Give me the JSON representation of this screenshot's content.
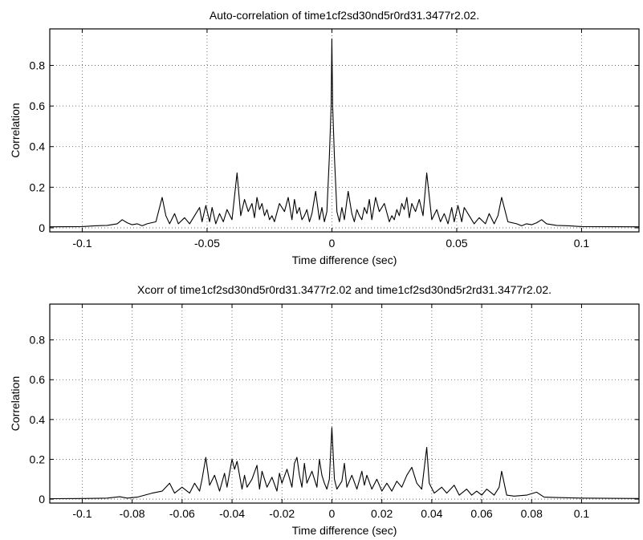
{
  "chart_data": [
    {
      "type": "line",
      "title": "Auto-correlation of time1cf2sd30nd5r0rd31.3477r2.02.",
      "xlabel": "Time difference (sec)",
      "ylabel": "Correlation",
      "xlim": [
        -0.113,
        0.123
      ],
      "ylim": [
        -0.02,
        0.98
      ],
      "grid": true,
      "xticks": [
        -0.1,
        -0.05,
        0,
        0.05,
        0.1
      ],
      "xtick_labels": [
        "-0.1",
        "-0.05",
        "0",
        "0.05",
        "0.1"
      ],
      "yticks": [
        0,
        0.2,
        0.4,
        0.6,
        0.8
      ],
      "ytick_labels": [
        "0",
        "0.2",
        "0.4",
        "0.6",
        "0.8"
      ],
      "series": [
        {
          "x": [
            -0.113,
            -0.1,
            -0.095,
            -0.09,
            -0.086,
            -0.084,
            -0.082,
            -0.08,
            -0.078,
            -0.076,
            -0.074,
            -0.0705,
            -0.068,
            -0.0665,
            -0.065,
            -0.063,
            -0.0615,
            -0.059,
            -0.057,
            -0.055,
            -0.053,
            -0.052,
            -0.0505,
            -0.049,
            -0.048,
            -0.0465,
            -0.045,
            -0.0435,
            -0.042,
            -0.04,
            -0.038,
            -0.0365,
            -0.035,
            -0.0335,
            -0.032,
            -0.031,
            -0.03,
            -0.029,
            -0.028,
            -0.027,
            -0.026,
            -0.025,
            -0.024,
            -0.023,
            -0.021,
            -0.019,
            -0.0175,
            -0.016,
            -0.015,
            -0.014,
            -0.013,
            -0.012,
            -0.011,
            -0.01,
            -0.009,
            -0.008,
            -0.0065,
            -0.005,
            -0.004,
            -0.003,
            -0.002,
            -0.001,
            -0.0003,
            0,
            0.0003,
            0.001,
            0.002,
            0.003,
            0.004,
            0.005,
            0.0065,
            0.008,
            0.009,
            0.01,
            0.011,
            0.012,
            0.013,
            0.014,
            0.015,
            0.016,
            0.0175,
            0.019,
            0.021,
            0.023,
            0.024,
            0.025,
            0.026,
            0.027,
            0.028,
            0.029,
            0.03,
            0.031,
            0.032,
            0.0335,
            0.035,
            0.0365,
            0.038,
            0.04,
            0.042,
            0.0435,
            0.045,
            0.0465,
            0.048,
            0.049,
            0.0505,
            0.052,
            0.053,
            0.055,
            0.057,
            0.059,
            0.0615,
            0.063,
            0.065,
            0.0665,
            0.068,
            0.0705,
            0.074,
            0.076,
            0.078,
            0.08,
            0.082,
            0.084,
            0.086,
            0.09,
            0.095,
            0.1,
            0.123
          ],
          "y": [
            0.005,
            0.006,
            0.01,
            0.012,
            0.02,
            0.04,
            0.025,
            0.015,
            0.02,
            0.01,
            0.02,
            0.03,
            0.15,
            0.06,
            0.02,
            0.07,
            0.02,
            0.05,
            0.02,
            0.06,
            0.1,
            0.03,
            0.11,
            0.03,
            0.1,
            0.02,
            0.07,
            0.03,
            0.09,
            0.04,
            0.27,
            0.06,
            0.14,
            0.08,
            0.12,
            0.05,
            0.15,
            0.09,
            0.12,
            0.06,
            0.09,
            0.04,
            0.06,
            0.03,
            0.12,
            0.08,
            0.15,
            0.04,
            0.14,
            0.07,
            0.1,
            0.04,
            0.06,
            0.09,
            0.03,
            0.07,
            0.18,
            0.04,
            0.1,
            0.03,
            0.08,
            0.35,
            0.6,
            0.93,
            0.6,
            0.35,
            0.08,
            0.03,
            0.1,
            0.04,
            0.18,
            0.07,
            0.03,
            0.09,
            0.06,
            0.04,
            0.1,
            0.07,
            0.14,
            0.04,
            0.15,
            0.08,
            0.12,
            0.03,
            0.06,
            0.04,
            0.09,
            0.06,
            0.12,
            0.09,
            0.15,
            0.05,
            0.12,
            0.08,
            0.14,
            0.06,
            0.27,
            0.04,
            0.09,
            0.03,
            0.07,
            0.02,
            0.1,
            0.03,
            0.11,
            0.03,
            0.1,
            0.06,
            0.02,
            0.05,
            0.02,
            0.07,
            0.02,
            0.06,
            0.15,
            0.03,
            0.02,
            0.01,
            0.02,
            0.015,
            0.025,
            0.04,
            0.02,
            0.012,
            0.01,
            0.006,
            0.005
          ]
        }
      ]
    },
    {
      "type": "line",
      "title": "Xcorr of time1cf2sd30nd5r0rd31.3477r2.02 and time1cf2sd30nd5r2rd31.3477r2.02.",
      "xlabel": "Time difference (sec)",
      "ylabel": "Correlation",
      "xlim": [
        -0.113,
        0.123
      ],
      "ylim": [
        -0.02,
        0.98
      ],
      "grid": true,
      "xticks": [
        -0.1,
        -0.08,
        -0.06,
        -0.04,
        -0.02,
        0,
        0.02,
        0.04,
        0.06,
        0.08,
        0.1
      ],
      "xtick_labels": [
        "-0.1",
        "-0.08",
        "-0.06",
        "-0.04",
        "-0.02",
        "0",
        "0.02",
        "0.04",
        "0.06",
        "0.08",
        "0.1"
      ],
      "yticks": [
        0,
        0.2,
        0.4,
        0.6,
        0.8
      ],
      "ytick_labels": [
        "0",
        "0.2",
        "0.4",
        "0.6",
        "0.8"
      ],
      "series": [
        {
          "x": [
            -0.113,
            -0.1,
            -0.09,
            -0.085,
            -0.082,
            -0.078,
            -0.072,
            -0.068,
            -0.065,
            -0.063,
            -0.06,
            -0.057,
            -0.055,
            -0.053,
            -0.052,
            -0.0505,
            -0.049,
            -0.047,
            -0.045,
            -0.043,
            -0.042,
            -0.04,
            -0.039,
            -0.038,
            -0.036,
            -0.035,
            -0.034,
            -0.032,
            -0.03,
            -0.029,
            -0.028,
            -0.026,
            -0.024,
            -0.022,
            -0.021,
            -0.02,
            -0.018,
            -0.016,
            -0.015,
            -0.014,
            -0.013,
            -0.012,
            -0.011,
            -0.01,
            -0.008,
            -0.006,
            -0.005,
            -0.004,
            -0.003,
            -0.002,
            -0.001,
            0,
            0.001,
            0.002,
            0.004,
            0.005,
            0.006,
            0.008,
            0.01,
            0.012,
            0.013,
            0.014,
            0.016,
            0.018,
            0.02,
            0.022,
            0.024,
            0.026,
            0.028,
            0.03,
            0.032,
            0.034,
            0.036,
            0.038,
            0.039,
            0.041,
            0.044,
            0.046,
            0.049,
            0.051,
            0.054,
            0.056,
            0.058,
            0.06,
            0.062,
            0.065,
            0.067,
            0.068,
            0.07,
            0.073,
            0.078,
            0.082,
            0.085,
            0.09,
            0.1,
            0.123
          ],
          "y": [
            0.002,
            0.003,
            0.005,
            0.012,
            0.005,
            0.01,
            0.03,
            0.04,
            0.08,
            0.03,
            0.06,
            0.03,
            0.08,
            0.04,
            0.1,
            0.21,
            0.07,
            0.12,
            0.04,
            0.13,
            0.06,
            0.2,
            0.15,
            0.19,
            0.05,
            0.12,
            0.06,
            0.1,
            0.17,
            0.05,
            0.14,
            0.06,
            0.11,
            0.04,
            0.13,
            0.08,
            0.15,
            0.06,
            0.18,
            0.21,
            0.12,
            0.06,
            0.18,
            0.08,
            0.14,
            0.06,
            0.2,
            0.12,
            0.08,
            0.05,
            0.1,
            0.36,
            0.1,
            0.05,
            0.09,
            0.18,
            0.06,
            0.12,
            0.05,
            0.14,
            0.07,
            0.12,
            0.05,
            0.1,
            0.04,
            0.08,
            0.04,
            0.09,
            0.06,
            0.12,
            0.16,
            0.08,
            0.05,
            0.26,
            0.08,
            0.03,
            0.06,
            0.03,
            0.07,
            0.02,
            0.05,
            0.02,
            0.04,
            0.02,
            0.05,
            0.02,
            0.06,
            0.14,
            0.02,
            0.015,
            0.02,
            0.035,
            0.01,
            0.008,
            0.005,
            0.003
          ]
        }
      ]
    }
  ]
}
